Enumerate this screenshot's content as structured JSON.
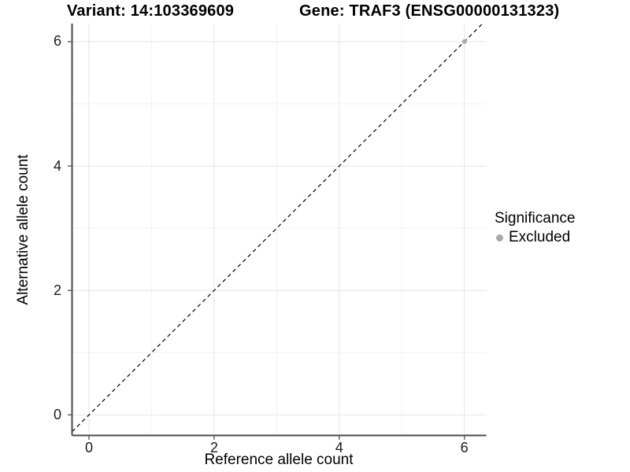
{
  "chart_data": {
    "type": "scatter",
    "title_variant": "Variant: 14:103369609",
    "title_gene": "Gene: TRAF3 (ENSG00000131323)",
    "xlabel": "Reference allele count",
    "ylabel": "Alternative allele count",
    "x_ticks": [
      0,
      2,
      4,
      6
    ],
    "y_ticks": [
      0,
      2,
      4,
      6
    ],
    "x_minor_ticks": [
      1,
      3,
      5
    ],
    "y_minor_ticks": [
      1,
      3,
      5
    ],
    "xlim": [
      -0.27,
      6.35
    ],
    "ylim": [
      -0.33,
      6.29
    ],
    "grid": true,
    "points": [
      {
        "x": 6,
        "y": 6,
        "series": "Excluded"
      }
    ],
    "identity_line": {
      "slope": 1,
      "intercept": 0,
      "style": "dashed"
    },
    "legend": {
      "title": "Significance",
      "position": "right",
      "entries": [
        {
          "label": "Excluded",
          "color": "#aaaaaa"
        }
      ]
    },
    "colors": {
      "background": "#ffffff",
      "text": "#000000",
      "axis_line": "#4a4a4a",
      "tick_mark": "#666666",
      "tick_label": "#1a1a1a",
      "grid_major": "#e4e4e4",
      "grid_minor": "#f2f2f2",
      "identity_line": "#000000",
      "excluded_point": "#aaaaaa"
    }
  }
}
